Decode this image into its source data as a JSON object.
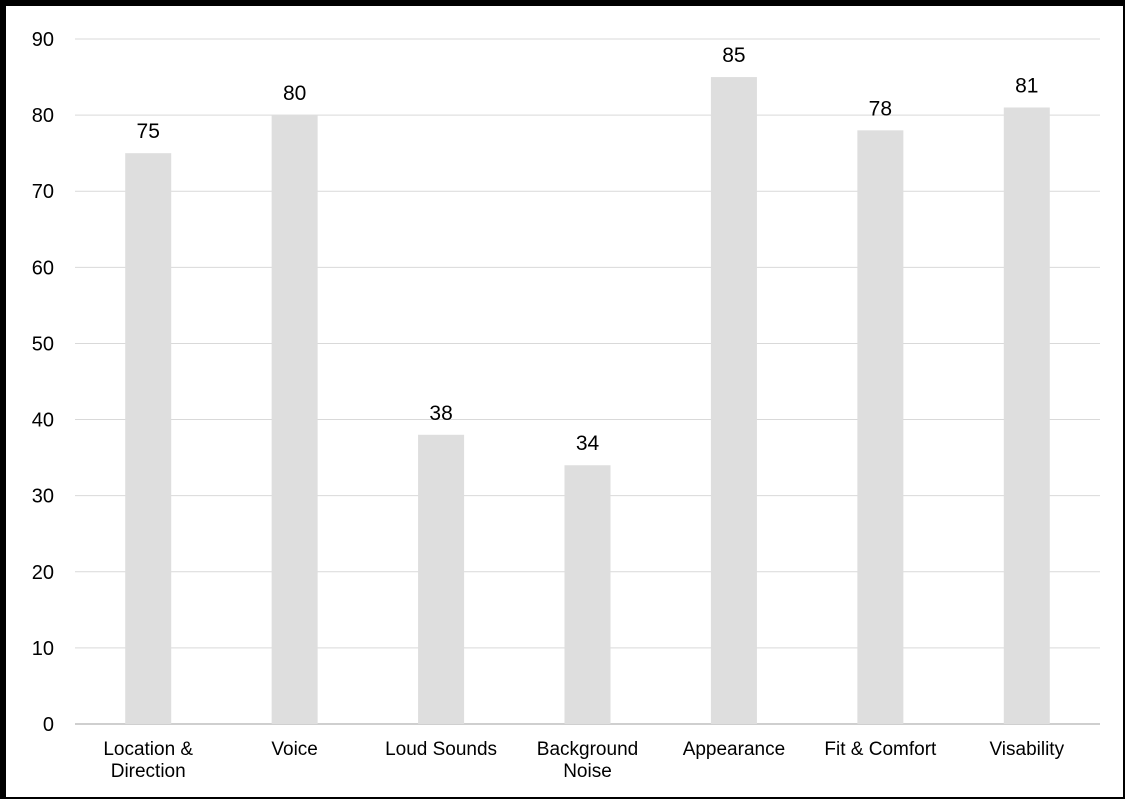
{
  "chart_data": {
    "type": "bar",
    "title": "",
    "xlabel": "",
    "ylabel": "",
    "categories": [
      [
        "Location &",
        "Direction"
      ],
      [
        "Voice"
      ],
      [
        "Loud Sounds"
      ],
      [
        "Background",
        "Noise"
      ],
      [
        "Appearance"
      ],
      [
        "Fit & Comfort"
      ],
      [
        "Visability"
      ]
    ],
    "values": [
      75,
      80,
      38,
      34,
      85,
      78,
      81
    ],
    "data_labels": [
      "75",
      "80",
      "38",
      "34",
      "85",
      "78",
      "81"
    ],
    "ylim": [
      0,
      90
    ],
    "yticks": [
      "0",
      "10",
      "20",
      "30",
      "40",
      "50",
      "60",
      "70",
      "80",
      "90"
    ],
    "grid": true,
    "legend": "none",
    "colors": {
      "bar": "#dedede",
      "grid": "#d9d9d9",
      "text": "#000000"
    }
  }
}
